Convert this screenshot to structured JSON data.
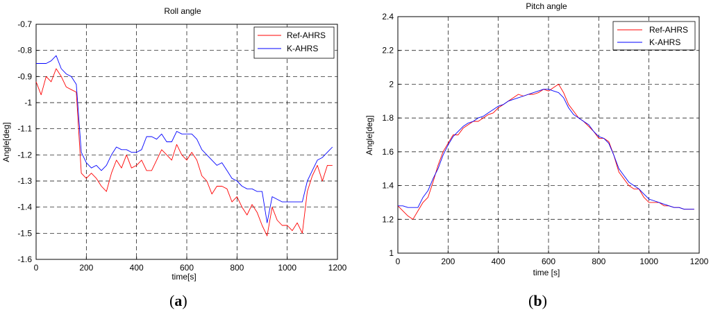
{
  "chart_data": [
    {
      "type": "line",
      "title": "Roll angle",
      "xlabel": "time[s]",
      "ylabel": "Angle[deg]",
      "panel_label": "a",
      "xlim": [
        0,
        1200
      ],
      "ylim": [
        -1.6,
        -0.7
      ],
      "xticks": [
        0,
        200,
        400,
        600,
        800,
        1000,
        1200
      ],
      "yticks": [
        -1.6,
        -1.5,
        -1.4,
        -1.3,
        -1.2,
        -1.1,
        -1,
        -0.9,
        -0.8,
        -0.7
      ],
      "xtick_labels": [
        "0",
        "200",
        "400",
        "600",
        "800",
        "1000",
        "1200"
      ],
      "ytick_labels": [
        "-1.6",
        "-1.5",
        "-1.4",
        "-1.3",
        "-1.2",
        "-1.1",
        "-1",
        "-0.9",
        "-0.8",
        "-0.7"
      ],
      "grid": true,
      "legend_position": "top-right",
      "series": [
        {
          "name": "Ref-AHRS",
          "color": "#ff0000",
          "x": [
            0,
            20,
            40,
            60,
            80,
            100,
            120,
            140,
            160,
            180,
            200,
            220,
            240,
            260,
            280,
            300,
            320,
            340,
            360,
            380,
            400,
            420,
            440,
            460,
            480,
            500,
            520,
            540,
            560,
            580,
            600,
            620,
            640,
            660,
            680,
            700,
            720,
            740,
            760,
            780,
            800,
            820,
            840,
            860,
            880,
            900,
            920,
            940,
            960,
            980,
            1000,
            1020,
            1040,
            1060,
            1080,
            1100,
            1120,
            1140,
            1160,
            1180
          ],
          "y": [
            -0.92,
            -0.97,
            -0.9,
            -0.92,
            -0.87,
            -0.9,
            -0.94,
            -0.95,
            -0.96,
            -1.27,
            -1.29,
            -1.27,
            -1.29,
            -1.32,
            -1.34,
            -1.27,
            -1.22,
            -1.25,
            -1.2,
            -1.25,
            -1.24,
            -1.22,
            -1.26,
            -1.26,
            -1.22,
            -1.18,
            -1.2,
            -1.22,
            -1.16,
            -1.2,
            -1.22,
            -1.19,
            -1.22,
            -1.28,
            -1.3,
            -1.35,
            -1.32,
            -1.32,
            -1.33,
            -1.38,
            -1.36,
            -1.4,
            -1.43,
            -1.39,
            -1.42,
            -1.47,
            -1.51,
            -1.4,
            -1.45,
            -1.47,
            -1.47,
            -1.49,
            -1.46,
            -1.5,
            -1.34,
            -1.28,
            -1.24,
            -1.3,
            -1.24,
            -1.24
          ]
        },
        {
          "name": "K-AHRS",
          "color": "#0000ff",
          "x": [
            0,
            20,
            40,
            60,
            80,
            100,
            120,
            140,
            160,
            180,
            200,
            220,
            240,
            260,
            280,
            300,
            320,
            340,
            360,
            380,
            400,
            420,
            440,
            460,
            480,
            500,
            520,
            540,
            560,
            580,
            600,
            620,
            640,
            660,
            680,
            700,
            720,
            740,
            760,
            780,
            800,
            820,
            840,
            860,
            880,
            900,
            920,
            940,
            960,
            980,
            1000,
            1020,
            1040,
            1060,
            1080,
            1100,
            1120,
            1140,
            1160,
            1180
          ],
          "y": [
            -0.85,
            -0.85,
            -0.85,
            -0.84,
            -0.82,
            -0.87,
            -0.89,
            -0.9,
            -0.93,
            -1.19,
            -1.23,
            -1.25,
            -1.24,
            -1.26,
            -1.24,
            -1.2,
            -1.17,
            -1.18,
            -1.18,
            -1.19,
            -1.19,
            -1.18,
            -1.13,
            -1.13,
            -1.14,
            -1.12,
            -1.15,
            -1.15,
            -1.11,
            -1.12,
            -1.12,
            -1.12,
            -1.14,
            -1.18,
            -1.2,
            -1.22,
            -1.24,
            -1.23,
            -1.26,
            -1.29,
            -1.3,
            -1.32,
            -1.33,
            -1.33,
            -1.34,
            -1.34,
            -1.46,
            -1.36,
            -1.37,
            -1.38,
            -1.38,
            -1.38,
            -1.38,
            -1.38,
            -1.3,
            -1.26,
            -1.22,
            -1.21,
            -1.19,
            -1.17
          ]
        }
      ]
    },
    {
      "type": "line",
      "title": "Pitch angle",
      "xlabel": "time [s]",
      "ylabel": "Angle[deg]",
      "panel_label": "b",
      "xlim": [
        0,
        1200
      ],
      "ylim": [
        1,
        2.4
      ],
      "xticks": [
        0,
        200,
        400,
        600,
        800,
        1000,
        1200
      ],
      "yticks": [
        1,
        1.2,
        1.4,
        1.6,
        1.8,
        2,
        2.2,
        2.4
      ],
      "xtick_labels": [
        "0",
        "200",
        "400",
        "600",
        "800",
        "1000",
        "1200"
      ],
      "ytick_labels": [
        "1",
        "1.2",
        "1.4",
        "1.6",
        "1.8",
        "2",
        "2.2",
        "2.4"
      ],
      "grid": true,
      "legend_position": "top-right",
      "series": [
        {
          "name": "Ref-AHRS",
          "color": "#ff0000",
          "x": [
            0,
            20,
            40,
            60,
            80,
            100,
            120,
            140,
            160,
            180,
            200,
            220,
            240,
            260,
            280,
            300,
            320,
            340,
            360,
            380,
            400,
            420,
            440,
            460,
            480,
            500,
            520,
            540,
            560,
            580,
            600,
            620,
            640,
            660,
            680,
            700,
            720,
            740,
            760,
            780,
            800,
            820,
            840,
            860,
            880,
            900,
            920,
            940,
            960,
            980,
            1000,
            1020,
            1040,
            1060,
            1080,
            1100,
            1120,
            1140,
            1160,
            1180
          ],
          "y": [
            1.28,
            1.25,
            1.22,
            1.2,
            1.25,
            1.3,
            1.33,
            1.42,
            1.52,
            1.6,
            1.65,
            1.7,
            1.7,
            1.74,
            1.76,
            1.78,
            1.78,
            1.8,
            1.82,
            1.83,
            1.86,
            1.88,
            1.9,
            1.92,
            1.94,
            1.93,
            1.94,
            1.94,
            1.95,
            1.97,
            1.96,
            1.98,
            2.0,
            1.95,
            1.88,
            1.84,
            1.8,
            1.78,
            1.75,
            1.72,
            1.68,
            1.68,
            1.66,
            1.58,
            1.48,
            1.44,
            1.4,
            1.38,
            1.38,
            1.33,
            1.3,
            1.3,
            1.3,
            1.28,
            1.28,
            1.27,
            1.27,
            1.26,
            1.26,
            1.26
          ]
        },
        {
          "name": "K-AHRS",
          "color": "#0000ff",
          "x": [
            0,
            20,
            40,
            60,
            80,
            100,
            120,
            140,
            160,
            180,
            200,
            220,
            240,
            260,
            280,
            300,
            320,
            340,
            360,
            380,
            400,
            420,
            440,
            460,
            480,
            500,
            520,
            540,
            560,
            580,
            600,
            620,
            640,
            660,
            680,
            700,
            720,
            740,
            760,
            780,
            800,
            820,
            840,
            860,
            880,
            900,
            920,
            940,
            960,
            980,
            1000,
            1020,
            1040,
            1060,
            1080,
            1100,
            1120,
            1140,
            1160,
            1180
          ],
          "y": [
            1.28,
            1.28,
            1.27,
            1.27,
            1.27,
            1.33,
            1.37,
            1.44,
            1.5,
            1.58,
            1.64,
            1.69,
            1.72,
            1.75,
            1.77,
            1.78,
            1.8,
            1.81,
            1.83,
            1.85,
            1.87,
            1.88,
            1.9,
            1.91,
            1.92,
            1.93,
            1.94,
            1.95,
            1.96,
            1.97,
            1.97,
            1.96,
            1.95,
            1.92,
            1.86,
            1.82,
            1.8,
            1.78,
            1.76,
            1.72,
            1.69,
            1.68,
            1.65,
            1.58,
            1.5,
            1.46,
            1.42,
            1.4,
            1.38,
            1.35,
            1.32,
            1.31,
            1.3,
            1.29,
            1.28,
            1.27,
            1.27,
            1.26,
            1.26,
            1.26
          ]
        }
      ]
    }
  ]
}
